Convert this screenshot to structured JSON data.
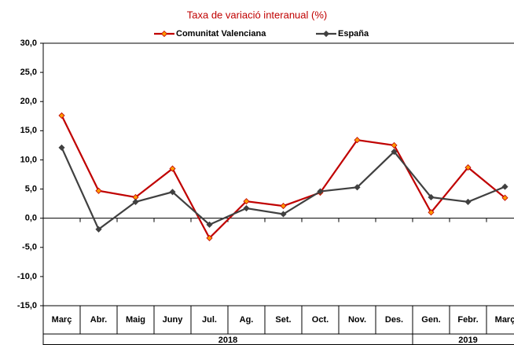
{
  "chart_data": {
    "type": "line",
    "subtitle": "Taxa de variació interanual (%)",
    "categories": [
      "Març",
      "Abr.",
      "Maig",
      "Juny",
      "Jul.",
      "Ag.",
      "Set.",
      "Oct.",
      "Nov.",
      "Des.",
      "Gen.",
      "Febr.",
      "Març"
    ],
    "x_groups": [
      {
        "label": "2018",
        "count": 10
      },
      {
        "label": "2019",
        "count": 3
      }
    ],
    "series": [
      {
        "name": "Comunitat Valenciana",
        "color": "#c00000",
        "marker_color": "#ff9900",
        "values": [
          17.6,
          4.7,
          3.6,
          8.5,
          -3.4,
          2.9,
          2.1,
          4.4,
          13.4,
          12.5,
          1.0,
          8.7,
          3.5
        ]
      },
      {
        "name": "España",
        "color": "#404040",
        "marker_color": "#404040",
        "values": [
          12.1,
          -1.9,
          2.8,
          4.5,
          -1.1,
          1.7,
          0.7,
          4.6,
          5.3,
          11.4,
          3.6,
          2.8,
          5.4
        ]
      }
    ],
    "ylim": [
      -15,
      30
    ],
    "yticks": [
      {
        "value": -15,
        "label": "-15,0"
      },
      {
        "value": -10,
        "label": "-10,0"
      },
      {
        "value": -5,
        "label": "-5,0"
      },
      {
        "value": 0,
        "label": "0,0"
      },
      {
        "value": 5,
        "label": "5,0"
      },
      {
        "value": 10,
        "label": "10,0"
      },
      {
        "value": 15,
        "label": "15,0"
      },
      {
        "value": 20,
        "label": "20,0"
      },
      {
        "value": 25,
        "label": "25,0"
      },
      {
        "value": 30,
        "label": "30,0"
      }
    ],
    "legend": "top"
  }
}
